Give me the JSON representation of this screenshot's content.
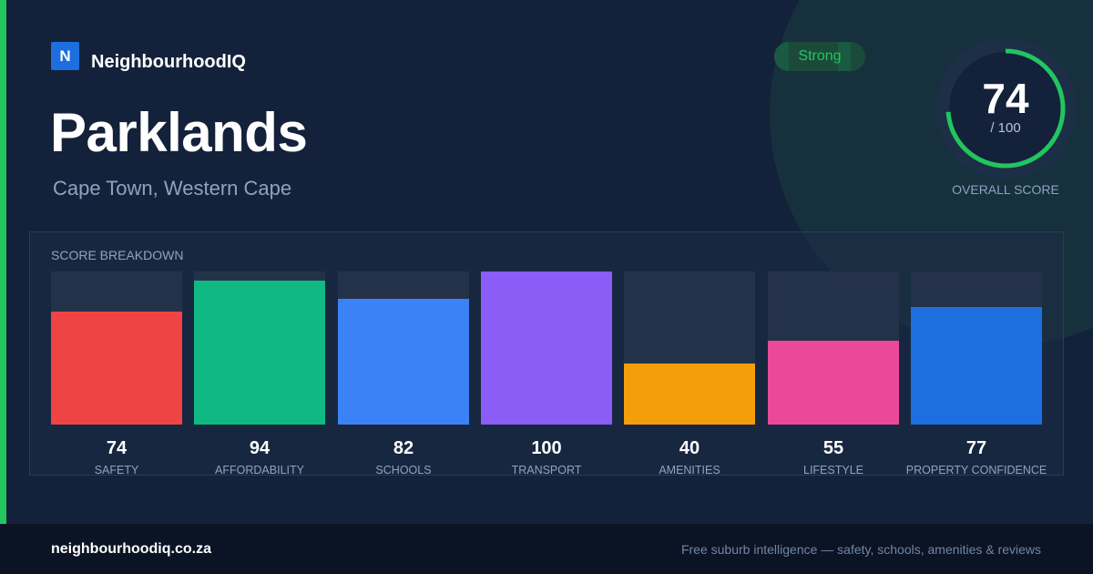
{
  "brand": {
    "logo_letter": "N",
    "name": "NeighbourhoodIQ"
  },
  "suburb": {
    "name": "Parklands",
    "location": "Cape Town, Western Cape"
  },
  "status_badge": {
    "label": "Strong",
    "color": "#22c55e"
  },
  "overall": {
    "score": "74",
    "max_label": "/ 100",
    "label": "OVERALL SCORE",
    "fraction": 0.74,
    "ring_color": "#22c55e"
  },
  "breakdown": {
    "title": "SCORE BREAKDOWN",
    "items": [
      {
        "label": "SAFETY",
        "value": "74",
        "score": 74,
        "color": "#ef4444"
      },
      {
        "label": "AFFORDABILITY",
        "value": "94",
        "score": 94,
        "color": "#10b981"
      },
      {
        "label": "SCHOOLS",
        "value": "82",
        "score": 82,
        "color": "#3b82f6"
      },
      {
        "label": "TRANSPORT",
        "value": "100",
        "score": 100,
        "color": "#8b5cf6"
      },
      {
        "label": "AMENITIES",
        "value": "40",
        "score": 40,
        "color": "#f59e0b"
      },
      {
        "label": "LIFESTYLE",
        "value": "55",
        "score": 55,
        "color": "#ec4899"
      },
      {
        "label": "PROPERTY CONFIDENCE",
        "value": "77",
        "score": 77,
        "color": "#1d6fe0"
      }
    ]
  },
  "footer": {
    "domain": "neighbourhoodiq.co.za",
    "tagline": "Free suburb intelligence — safety, schools, amenities & reviews"
  }
}
